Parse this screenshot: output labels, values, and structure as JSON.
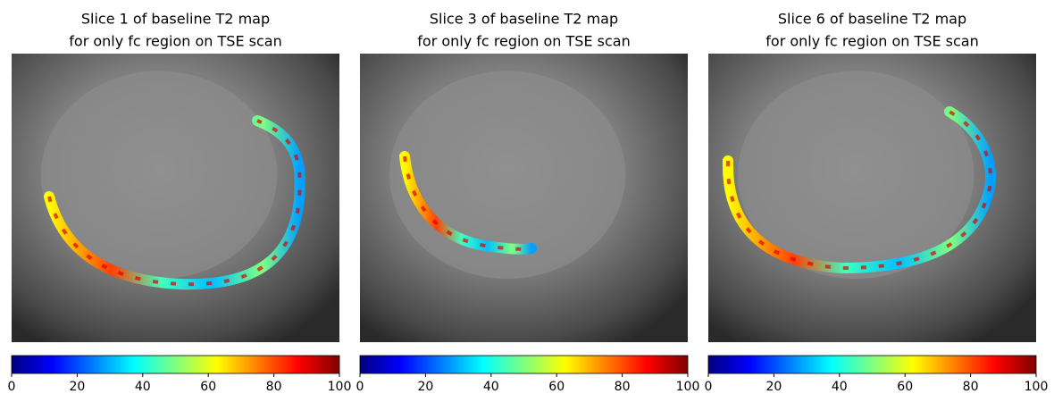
{
  "chart_data": [
    {
      "type": "image",
      "title": [
        "Slice 1 of baseline T2 map",
        "for only fc region on TSE scan"
      ],
      "colorbar": {
        "colormap": "jet",
        "lim": [
          0,
          100
        ],
        "ticks": [
          0,
          20,
          40,
          60,
          80,
          100
        ]
      }
    },
    {
      "type": "image",
      "title": [
        "Slice 3 of baseline T2 map",
        "for only fc region on TSE scan"
      ],
      "colorbar": {
        "colormap": "jet",
        "lim": [
          0,
          100
        ],
        "ticks": [
          0,
          20,
          40,
          60,
          80,
          100
        ]
      }
    },
    {
      "type": "image",
      "title": [
        "Slice 6 of baseline T2 map",
        "for only fc region on TSE scan"
      ],
      "colorbar": {
        "colormap": "jet",
        "lim": [
          0,
          100
        ],
        "ticks": [
          0,
          20,
          40,
          60,
          80,
          100
        ]
      }
    }
  ]
}
